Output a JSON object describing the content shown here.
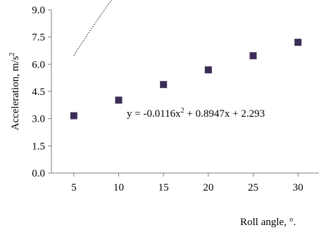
{
  "chart_data": {
    "type": "scatter",
    "title": "",
    "xlabel": "Roll angle, °.",
    "ylabel_main": "Acceleration, m/s",
    "ylabel_sup": "2",
    "x_ticks": [
      "5",
      "10",
      "15",
      "20",
      "25",
      "30"
    ],
    "y_ticks": [
      "0.0",
      "1.5",
      "3.0",
      "4.5",
      "6.0",
      "7.5",
      "9.0"
    ],
    "xlim": [
      2.5,
      32.5
    ],
    "ylim": [
      0,
      9
    ],
    "grid": false,
    "legend": "none",
    "series": [
      {
        "x": [
          5,
          10,
          15,
          20,
          25,
          30
        ],
        "y": [
          3.16,
          4.02,
          4.88,
          5.69,
          6.47,
          7.21
        ],
        "marker": "square",
        "color": "#3b2d55"
      }
    ],
    "trendline": {
      "type": "polynomial",
      "coefficients": [
        -0.0116,
        0.8947,
        2.293
      ],
      "style": "dotted",
      "color": "#3b2d55"
    },
    "equation": {
      "prefix": "y = -0.0116x",
      "sup": "2",
      "suffix": " + 0.8947x  + 2.293"
    }
  }
}
